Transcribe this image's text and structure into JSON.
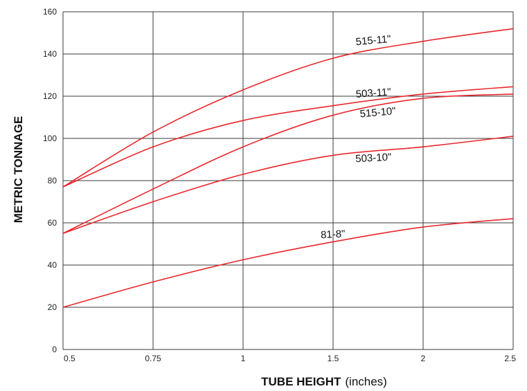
{
  "chart_data": {
    "type": "line",
    "xlabel": "TUBE HEIGHT",
    "xlabel_unit": "(inches)",
    "ylabel": "METRIC TONNAGE",
    "x_ticks": [
      "0.5",
      "0.75",
      "1",
      "1.5",
      "2",
      "2.5"
    ],
    "y_ticks": [
      "0",
      "20",
      "40",
      "60",
      "80",
      "100",
      "120",
      "140",
      "160"
    ],
    "ylim": [
      0,
      160
    ],
    "grid": true,
    "line_color": "#e8262b",
    "series": [
      {
        "name": "515-11\"",
        "x": [
          "0.5",
          "0.75",
          "1",
          "1.5",
          "2",
          "2.5"
        ],
        "values": [
          77,
          103,
          123,
          138,
          146,
          152
        ]
      },
      {
        "name": "503-11\"",
        "x": [
          "0.5",
          "0.75",
          "1",
          "1.5",
          "2",
          "2.5"
        ],
        "values": [
          77,
          96,
          108.5,
          115.5,
          121,
          124.5
        ]
      },
      {
        "name": "515-10\"",
        "x": [
          "0.5",
          "0.75",
          "1",
          "1.5",
          "2",
          "2.5"
        ],
        "values": [
          55,
          76,
          96,
          111,
          119,
          121
        ]
      },
      {
        "name": "503-10\"",
        "x": [
          "0.5",
          "0.75",
          "1",
          "1.5",
          "2",
          "2.5"
        ],
        "values": [
          55,
          70,
          83,
          92,
          96,
          101
        ]
      },
      {
        "name": "81-8\"",
        "x": [
          "0.5",
          "0.75",
          "1",
          "1.5",
          "2",
          "2.5"
        ],
        "values": [
          20,
          32,
          42.5,
          51,
          58,
          62
        ]
      }
    ]
  }
}
